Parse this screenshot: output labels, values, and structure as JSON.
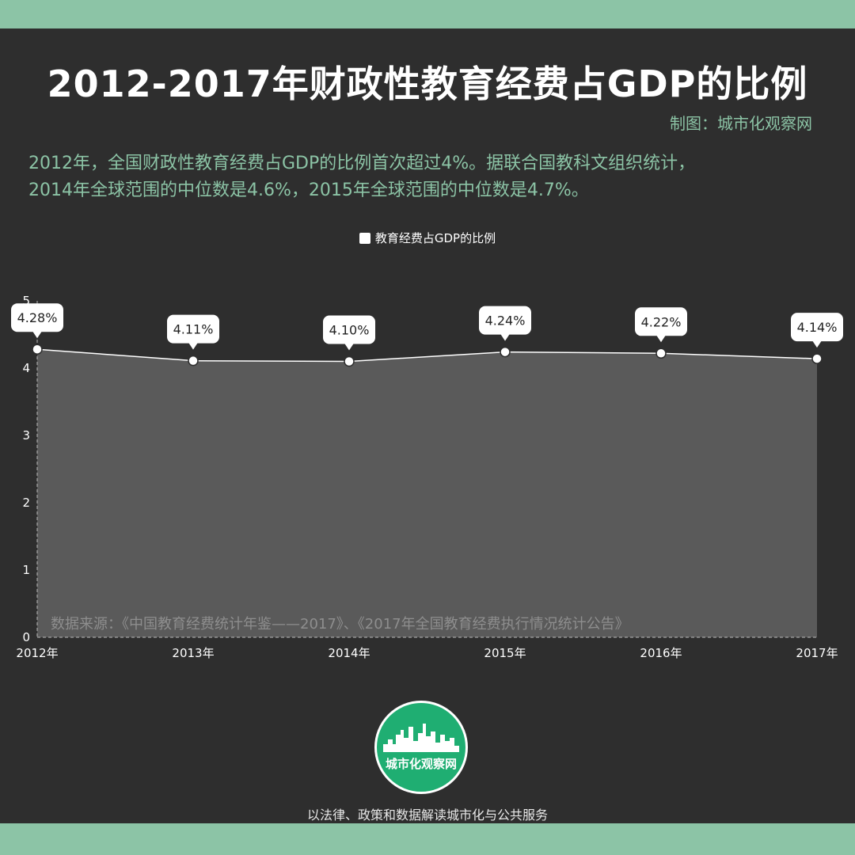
{
  "header": {
    "title": "2012-2017年财政性教育经费占GDP的比例",
    "credit": "制图：城市化观察网"
  },
  "description": {
    "line1": "2012年，全国财政性教育经费占GDP的比例首次超过4%。据联合国教科文组织统计，",
    "line2": "2014年全球范围的中位数是4.6%，2015年全球范围的中位数是4.7%。"
  },
  "chart_data": {
    "type": "area",
    "categories": [
      "2012年",
      "2013年",
      "2014年",
      "2015年",
      "2016年",
      "2017年"
    ],
    "series": [
      {
        "name": "教育经费占GDP的比例",
        "values": [
          4.28,
          4.11,
          4.1,
          4.24,
          4.22,
          4.14
        ],
        "labels": [
          "4.28%",
          "4.11%",
          "4.10%",
          "4.24%",
          "4.22%",
          "4.14%"
        ]
      }
    ],
    "ylim": [
      0,
      5
    ],
    "yticks": [
      "0",
      "1",
      "2",
      "3",
      "4",
      "5"
    ],
    "title": "",
    "xlabel": "",
    "ylabel": "",
    "legend": "top-center",
    "colors": {
      "line": "#ffffff",
      "area": "#5a5a5a",
      "axis": "#bbbbbb"
    }
  },
  "source_note": "数据来源：《中国教育经费统计年鉴——2017》、《2017年全国教育经费执行情况统计公告》",
  "logo": {
    "text": "城市化观察网"
  },
  "footer": {
    "slogan": "以法律、政策和数据解读城市化与公共服务"
  }
}
